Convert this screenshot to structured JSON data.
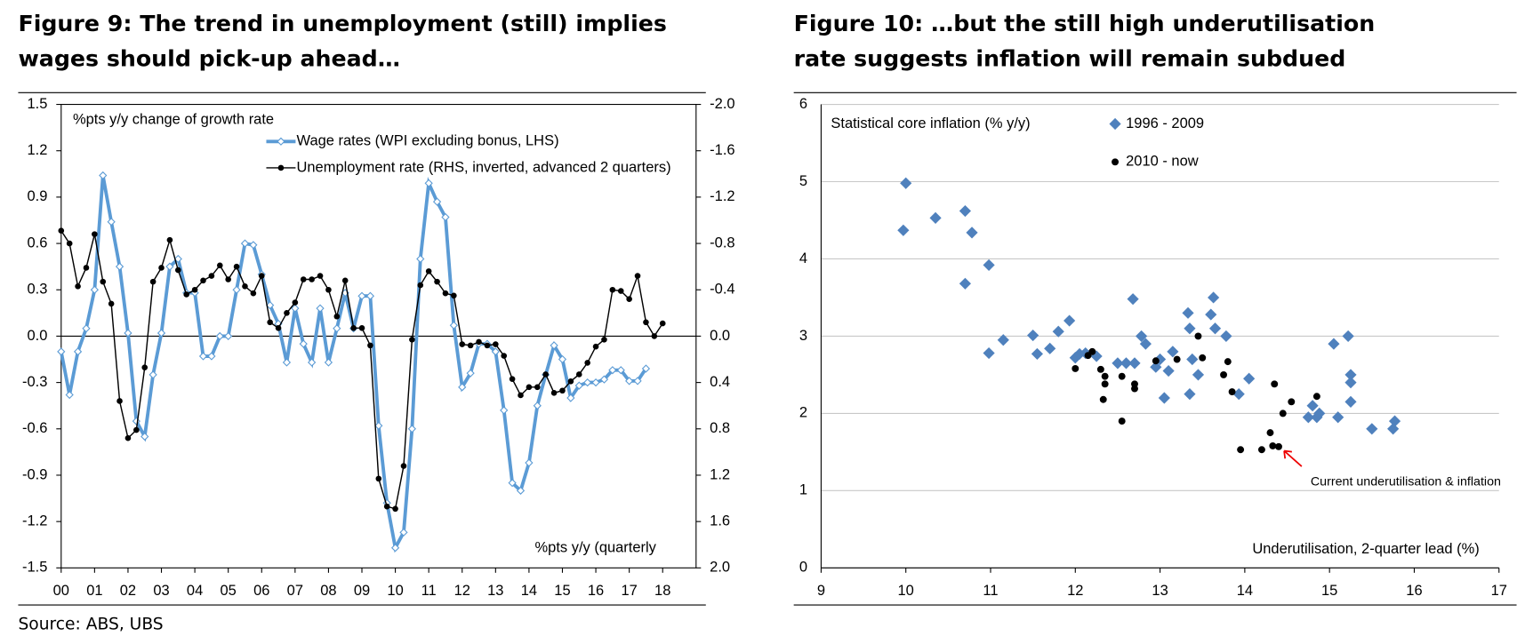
{
  "chart_data": [
    {
      "type": "line",
      "title": "Figure 9: The trend in unemployment (still) implies wages should pick-up ahead…",
      "y_label": "%pts y/y change of growth rate",
      "x_label": "%pts y/y (quarterly",
      "source": "Source: ABS, UBS",
      "x": [
        2000,
        2000.25,
        2000.5,
        2000.75,
        2001,
        2001.25,
        2001.5,
        2001.75,
        2002,
        2002.25,
        2002.5,
        2002.75,
        2003,
        2003.25,
        2003.5,
        2003.75,
        2004,
        2004.25,
        2004.5,
        2004.75,
        2005,
        2005.25,
        2005.5,
        2005.75,
        2006,
        2006.25,
        2006.5,
        2006.75,
        2007,
        2007.25,
        2007.5,
        2007.75,
        2008,
        2008.25,
        2008.5,
        2008.75,
        2009,
        2009.25,
        2009.5,
        2009.75,
        2010,
        2010.25,
        2010.5,
        2010.75,
        2011,
        2011.25,
        2011.5,
        2011.75,
        2012,
        2012.25,
        2012.5,
        2012.75,
        2013,
        2013.25,
        2013.5,
        2013.75,
        2014,
        2014.25,
        2014.5,
        2014.75,
        2015,
        2015.25,
        2015.5,
        2015.75,
        2016,
        2016.25,
        2016.5,
        2016.75,
        2017,
        2017.25,
        2017.5,
        2017.75,
        2018
      ],
      "xlim": [
        2000,
        2019
      ],
      "xticks": [
        {
          "value": 2000,
          "label": "00"
        },
        {
          "value": 2001,
          "label": "01"
        },
        {
          "value": 2002,
          "label": "02"
        },
        {
          "value": 2003,
          "label": "03"
        },
        {
          "value": 2004,
          "label": "04"
        },
        {
          "value": 2005,
          "label": "05"
        },
        {
          "value": 2006,
          "label": "06"
        },
        {
          "value": 2007,
          "label": "07"
        },
        {
          "value": 2008,
          "label": "08"
        },
        {
          "value": 2009,
          "label": "09"
        },
        {
          "value": 2010,
          "label": "10"
        },
        {
          "value": 2011,
          "label": "11"
        },
        {
          "value": 2012,
          "label": "12"
        },
        {
          "value": 2013,
          "label": "13"
        },
        {
          "value": 2014,
          "label": "14"
        },
        {
          "value": 2015,
          "label": "15"
        },
        {
          "value": 2016,
          "label": "16"
        },
        {
          "value": 2017,
          "label": "17"
        },
        {
          "value": 2018,
          "label": "18"
        }
      ],
      "ylim": [
        -1.5,
        1.5
      ],
      "yticks": [
        -1.5,
        -1.2,
        -0.9,
        -0.6,
        -0.3,
        {
          "value": 0,
          "label": "0.0"
        },
        0.3,
        0.6,
        0.9,
        1.2,
        1.5
      ],
      "y2lim": [
        2,
        -2
      ],
      "y2ticks": [
        {
          "value": 2,
          "label": "2.0"
        },
        1.6,
        1.2,
        0.8,
        0.4,
        {
          "value": 0,
          "label": "0.0"
        },
        -0.4,
        -0.8,
        -1.2,
        -1.6,
        {
          "value": -2,
          "label": "-2.0"
        }
      ],
      "series": [
        {
          "name": "Wage rates (WPI excluding bonus, LHS)",
          "color": "#5b9bd5",
          "values": [
            -0.1,
            -0.38,
            -0.1,
            0.05,
            0.3,
            1.04,
            0.74,
            0.45,
            0.02,
            -0.55,
            -0.65,
            -0.25,
            0.02,
            0.45,
            0.5,
            0.28,
            0.28,
            -0.13,
            -0.13,
            0.0,
            0.0,
            0.3,
            0.6,
            0.59,
            0.4,
            0.2,
            0.08,
            -0.17,
            0.18,
            -0.05,
            -0.17,
            0.18,
            -0.17,
            0.05,
            0.28,
            0.05,
            0.26,
            0.26,
            -0.58,
            -1.08,
            -1.37,
            -1.27,
            -0.6,
            0.5,
            0.99,
            0.87,
            0.77,
            0.07,
            -0.33,
            -0.24,
            -0.05,
            -0.05,
            -0.1,
            -0.48,
            -0.95,
            -1.0,
            -0.82,
            -0.45,
            -0.25,
            -0.06,
            -0.15,
            -0.4,
            -0.32,
            -0.3,
            -0.3,
            -0.28,
            -0.22,
            -0.22,
            -0.29,
            -0.29,
            -0.21,
            null,
            null
          ]
        },
        {
          "name": "Unemployment rate (RHS, inverted, advanced 2 quarters)",
          "color": "#000000",
          "axis": "y2",
          "values": [
            -0.91,
            -0.8,
            -0.43,
            -0.59,
            -0.88,
            -0.47,
            -0.28,
            0.56,
            0.88,
            0.81,
            0.27,
            -0.47,
            -0.59,
            -0.83,
            -0.57,
            -0.36,
            -0.4,
            -0.48,
            -0.52,
            -0.61,
            -0.49,
            -0.6,
            -0.43,
            -0.37,
            -0.52,
            -0.12,
            -0.07,
            -0.2,
            -0.29,
            -0.49,
            -0.49,
            -0.52,
            -0.4,
            -0.17,
            -0.48,
            -0.07,
            -0.07,
            0.08,
            1.23,
            1.47,
            1.49,
            1.12,
            0.03,
            -0.44,
            -0.56,
            -0.47,
            -0.37,
            -0.35,
            0.07,
            0.08,
            0.05,
            0.08,
            0.07,
            0.17,
            0.37,
            0.51,
            0.44,
            0.44,
            0.33,
            0.49,
            0.47,
            0.39,
            0.33,
            0.23,
            0.09,
            0.03,
            -0.4,
            -0.39,
            -0.32,
            -0.52,
            -0.12,
            0.0,
            -0.11
          ]
        }
      ]
    },
    {
      "type": "scatter",
      "title": "Figure 10: …but the still high underutilisation rate suggests inflation will remain subdued",
      "y_label": "Statistical core inflation (% y/y)",
      "x_label": "Underutilisation, 2-quarter lead (%)",
      "annotation": "Current underutilisation & inflation",
      "xlim": [
        9,
        17
      ],
      "xticks": [
        9,
        10,
        11,
        12,
        13,
        14,
        15,
        16,
        17
      ],
      "ylim": [
        0,
        6
      ],
      "yticks": [
        0,
        1,
        2,
        3,
        4,
        5,
        6
      ],
      "grid": true,
      "series": [
        {
          "name": "1996 - 2009",
          "color": "#4f81bd",
          "marker": "diamond",
          "x": [
            10.0,
            9.97,
            10.35,
            10.7,
            10.7,
            10.78,
            10.98,
            10.98,
            11.15,
            11.5,
            11.55,
            11.7,
            11.8,
            11.93,
            12.0,
            12.05,
            12.12,
            12.25,
            12.5,
            12.6,
            12.68,
            12.7,
            12.78,
            12.83,
            12.95,
            13.0,
            13.05,
            13.1,
            13.15,
            13.33,
            13.35,
            13.35,
            13.38,
            13.45,
            13.6,
            13.63,
            13.65,
            13.78,
            13.93,
            14.05,
            14.75,
            14.8,
            14.85,
            14.88,
            15.05,
            15.1,
            15.22,
            15.25,
            15.25,
            15.25,
            15.5,
            15.75,
            15.77
          ],
          "y": [
            4.98,
            4.37,
            4.53,
            4.62,
            3.68,
            4.34,
            3.92,
            2.78,
            2.95,
            3.01,
            2.77,
            2.84,
            3.06,
            3.2,
            2.72,
            2.77,
            2.78,
            2.74,
            2.65,
            2.65,
            3.48,
            2.65,
            3.0,
            2.9,
            2.6,
            2.7,
            2.2,
            2.55,
            2.8,
            3.3,
            3.1,
            2.25,
            2.7,
            2.5,
            3.28,
            3.5,
            3.1,
            3.0,
            2.25,
            2.45,
            1.95,
            2.1,
            1.95,
            2.0,
            2.9,
            1.95,
            3.0,
            2.5,
            2.4,
            2.15,
            1.8,
            1.8,
            1.9
          ]
        },
        {
          "name": "2010 - now",
          "color": "#000000",
          "marker": "circle",
          "x": [
            12.0,
            12.15,
            12.2,
            12.3,
            12.35,
            12.35,
            12.33,
            12.55,
            12.55,
            12.7,
            12.7,
            12.95,
            13.2,
            13.45,
            13.5,
            13.75,
            13.8,
            13.85,
            13.95,
            14.2,
            14.3,
            14.33,
            14.35,
            14.4,
            14.45,
            14.55,
            14.85
          ],
          "y": [
            2.58,
            2.75,
            2.8,
            2.57,
            2.48,
            2.38,
            2.18,
            2.48,
            1.9,
            2.38,
            2.32,
            2.68,
            2.7,
            3.0,
            2.72,
            2.5,
            2.67,
            2.28,
            1.53,
            1.53,
            1.75,
            1.58,
            2.38,
            1.57,
            2.0,
            2.15,
            2.22
          ]
        }
      ]
    }
  ]
}
